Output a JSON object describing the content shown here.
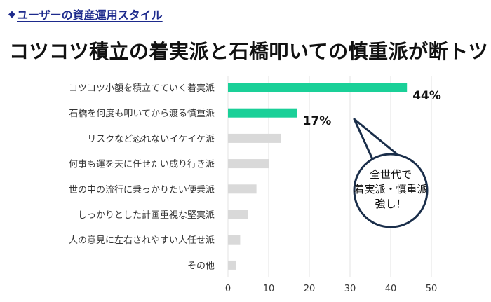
{
  "header": {
    "marker": "◆",
    "label": "ユーザーの資産運用スタイル"
  },
  "headline": "コツコツ積立の着実派と石橋叩いての慎重派が断トツ",
  "callout": {
    "lines": [
      "全世代で",
      "着実派・慎重派",
      "強し！"
    ]
  },
  "colors": {
    "accent": "#1ad098",
    "muted": "#d9d9d9",
    "grid": "#e3e3e3",
    "navy": "#1d2a8c",
    "callout_stroke": "#1a2e4a"
  },
  "chart_data": {
    "type": "bar",
    "orientation": "horizontal",
    "categories": [
      "コツコツ小額を積立てていく着実派",
      "石橋を何度も叩いてから渡る慎重派",
      "リスクなど恐れないイケイケ派",
      "何事も運を天に任せたい成り行き派",
      "世の中の流行に乗っかりたい便乗派",
      "しっかりとした計画重視な堅実派",
      "人の意見に左右されやすい人任せ派",
      "その他"
    ],
    "values": [
      44,
      17,
      13,
      10,
      7,
      5,
      3,
      2
    ],
    "data_labels": [
      "44%",
      "17%",
      null,
      null,
      null,
      null,
      null,
      null
    ],
    "highlight": [
      true,
      true,
      false,
      false,
      false,
      false,
      false,
      false
    ],
    "xlim": [
      0,
      50
    ],
    "xticks": [
      0,
      10,
      20,
      30,
      40,
      50
    ],
    "grid": true
  }
}
